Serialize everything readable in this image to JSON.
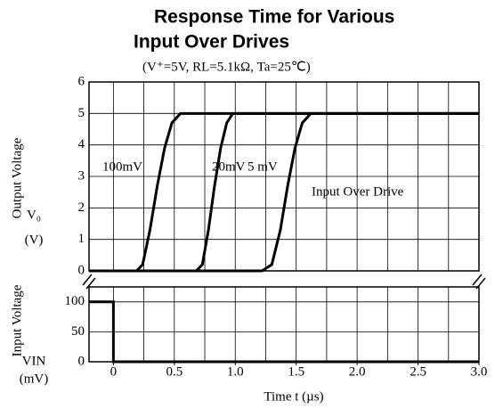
{
  "chart_data": [
    {
      "type": "line",
      "title": "Response Time for Various",
      "title2": "Input Over Drives",
      "subtitle": "(V⁺=5V,  RL=5.1kΩ,  Ta=25℃)",
      "ylabel": "Output Voltage",
      "ysymbol": "V₀",
      "yunit": "(V)",
      "xlim": [
        -0.2,
        3.0
      ],
      "ylim": [
        0,
        6
      ],
      "yticks": [
        0,
        1,
        2,
        3,
        4,
        5,
        6
      ],
      "xminor": [
        0,
        0.25,
        0.5,
        0.75,
        1,
        1.25,
        1.5,
        1.75,
        2,
        2.25,
        2.5,
        2.75
      ],
      "grid": true,
      "series": [
        {
          "name": "100mV",
          "color": "#000000",
          "x": [
            -0.2,
            0.19,
            0.24,
            0.3,
            0.36,
            0.42,
            0.48,
            0.55,
            3.0
          ],
          "values": [
            0,
            0,
            0.2,
            1.3,
            2.7,
            3.9,
            4.7,
            5,
            5
          ]
        },
        {
          "name": "20mV",
          "color": "#000000",
          "x": [
            -0.2,
            0.68,
            0.73,
            0.78,
            0.83,
            0.88,
            0.93,
            0.98,
            3.0
          ],
          "values": [
            0,
            0,
            0.2,
            1.3,
            2.7,
            3.9,
            4.7,
            5,
            5
          ]
        },
        {
          "name": "5 mV",
          "color": "#000000",
          "x": [
            -0.2,
            1.22,
            1.3,
            1.37,
            1.43,
            1.49,
            1.55,
            1.62,
            3.0
          ],
          "values": [
            0,
            0,
            0.2,
            1.3,
            2.7,
            3.9,
            4.7,
            5,
            5
          ]
        }
      ],
      "annotation": "Input Over Drive"
    },
    {
      "type": "line",
      "ylabel": "Input Voltage",
      "ysymbol": "VIN",
      "yunit": "(mV)",
      "xlabel": "Time t  (µs)",
      "xlim": [
        -0.2,
        3.0
      ],
      "ylim": [
        0,
        125
      ],
      "yticks": [
        0,
        50,
        100
      ],
      "xticks": [
        0,
        0.5,
        {
          "value": 1,
          "label": "1.0"
        },
        1.5,
        {
          "value": 2,
          "label": "2.0"
        },
        2.5,
        {
          "value": 3,
          "label": "3.0"
        }
      ],
      "xminor": [
        0,
        0.25,
        0.5,
        0.75,
        1,
        1.25,
        1.5,
        1.75,
        2,
        2.25,
        2.5,
        2.75
      ],
      "grid": true,
      "series": [
        {
          "name": "Input",
          "color": "#000000",
          "x": [
            -0.2,
            0,
            0,
            3.0
          ],
          "values": [
            100,
            100,
            0,
            0
          ]
        }
      ]
    }
  ]
}
